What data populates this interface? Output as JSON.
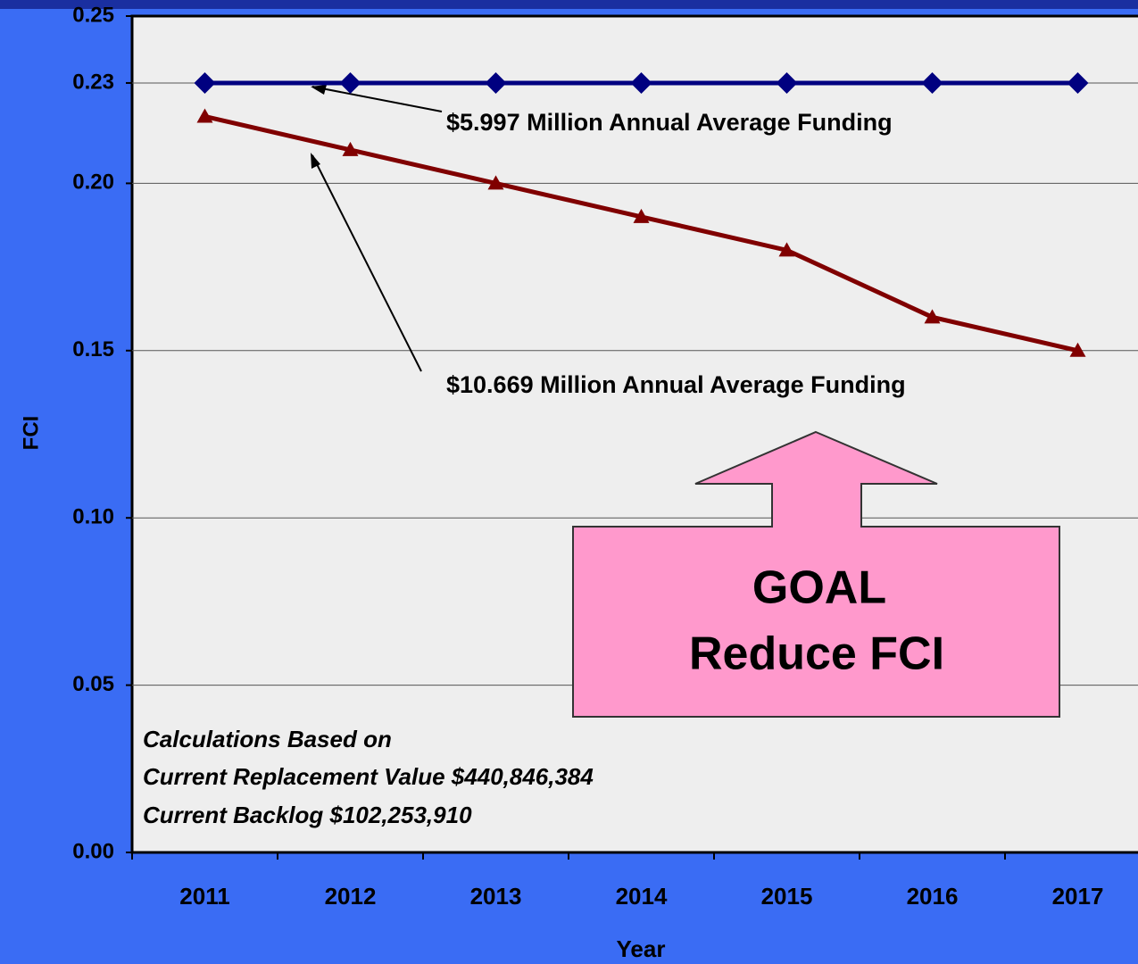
{
  "chart_data": {
    "type": "line",
    "categories": [
      "2011",
      "2012",
      "2013",
      "2014",
      "2015",
      "2016",
      "2017"
    ],
    "series": [
      {
        "name": "$5.997 Million Annual Average Funding",
        "color": "#000080",
        "marker": "diamond",
        "values": [
          0.23,
          0.23,
          0.23,
          0.23,
          0.23,
          0.23,
          0.23
        ]
      },
      {
        "name": "$10.669 Million Annual Average Funding",
        "color": "#800000",
        "marker": "triangle",
        "values": [
          0.22,
          0.21,
          0.2,
          0.19,
          0.18,
          0.16,
          0.15
        ]
      }
    ],
    "ylim": [
      0,
      0.25
    ],
    "yticks": [
      {
        "value": 0,
        "label": "0.00"
      },
      0.05,
      {
        "value": 0.1,
        "label": "0.10"
      },
      0.15,
      {
        "value": 0.2,
        "label": "0.20"
      },
      0.23,
      0.25
    ],
    "grid": true,
    "y_label": "FCI",
    "x_label": "Year",
    "notes": [
      "Calculations Based on",
      "Current Replacement Value $440,846,384",
      "Current Backlog $102,253,910"
    ],
    "goal": [
      "GOAL",
      "Reduce FCI"
    ]
  }
}
